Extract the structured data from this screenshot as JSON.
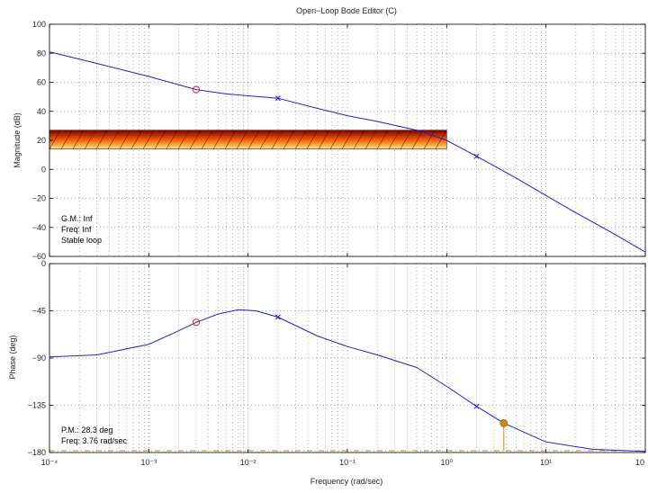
{
  "window": {
    "title": "Open−Loop Bode Editor (C)"
  },
  "colors": {
    "response": "#1f1fd6",
    "zero_marker": "#d62728",
    "pole_marker": "#1f1fd6",
    "margin_marker": "#d4860f",
    "grid": "#8c8c8c",
    "axes": "#000000",
    "band_top": "#7a0000",
    "band_mid": "#f05a00",
    "band_bottom": "#ffe680"
  },
  "magnitude_info": {
    "gm": "G.M.: Inf",
    "freq": "Freq: Inf",
    "stable": "Stable loop"
  },
  "phase_info": {
    "pm": "P.M.: 28.3 deg",
    "freq": "Freq: 3.76 rad/sec"
  },
  "chart_data": [
    {
      "type": "line",
      "panel": "magnitude",
      "title": "Open−Loop Bode Editor (C)",
      "xlabel": "",
      "ylabel": "Magnitude (dB)",
      "xscale": "log",
      "xlim": [
        0.0001,
        100
      ],
      "ylim": [
        -60,
        100
      ],
      "yticks": [
        "−60",
        "−40",
        "−20",
        "0",
        "20",
        "40",
        "60",
        "80",
        "100"
      ],
      "xticks": [],
      "grid": true,
      "series": [
        {
          "x": [
            0.0001,
            0.0003,
            0.001,
            0.003,
            0.006,
            0.02,
            0.05,
            0.1,
            0.2,
            0.5,
            1,
            2,
            5,
            10,
            20,
            50,
            100
          ],
          "values": [
            81,
            73,
            64,
            55,
            52,
            49,
            42,
            37,
            33,
            27,
            20,
            9,
            -6,
            -18,
            -30,
            -45,
            -57
          ]
        }
      ],
      "zero_markers": [
        {
          "x": 0.003,
          "y": 55
        }
      ],
      "pole_markers": [
        {
          "x": 0.02,
          "y": 49
        },
        {
          "x": 2,
          "y": 9
        }
      ],
      "band": {
        "x": [
          0.0001,
          1
        ],
        "y": [
          14,
          27
        ]
      },
      "annotations": [
        "G.M.: Inf",
        "Freq: Inf",
        "Stable loop"
      ]
    },
    {
      "type": "line",
      "panel": "phase",
      "xlabel": "Frequency (rad/sec)",
      "ylabel": "Phase (deg)",
      "xscale": "log",
      "xlim": [
        0.0001,
        100
      ],
      "ylim": [
        -180,
        0
      ],
      "yticks": [
        "−180",
        "−135",
        "−90",
        "−45",
        "0"
      ],
      "xticks": [
        "10⁻⁴",
        "10⁻³",
        "10⁻²",
        "10⁻¹",
        "10⁰",
        "10¹",
        "10"
      ],
      "grid": true,
      "series": [
        {
          "x": [
            0.0001,
            0.0003,
            0.001,
            0.002,
            0.003,
            0.005,
            0.008,
            0.012,
            0.02,
            0.05,
            0.1,
            0.2,
            0.5,
            1,
            2,
            3.76,
            10,
            30,
            100
          ],
          "values": [
            -89,
            -87,
            -77,
            -64,
            -56,
            -48,
            -44,
            -45,
            -51,
            -69,
            -79,
            -87,
            -99,
            -117,
            -136,
            -152,
            -170,
            -177,
            -179
          ]
        }
      ],
      "zero_markers": [
        {
          "x": 0.003,
          "y": -56
        }
      ],
      "pole_markers": [
        {
          "x": 0.02,
          "y": -51
        },
        {
          "x": 2,
          "y": -136
        }
      ],
      "margin_marker": {
        "x": 3.76,
        "y": -152
      },
      "reference_line": -180,
      "annotations": [
        "P.M.: 28.3 deg",
        "Freq: 3.76 rad/sec"
      ]
    }
  ]
}
